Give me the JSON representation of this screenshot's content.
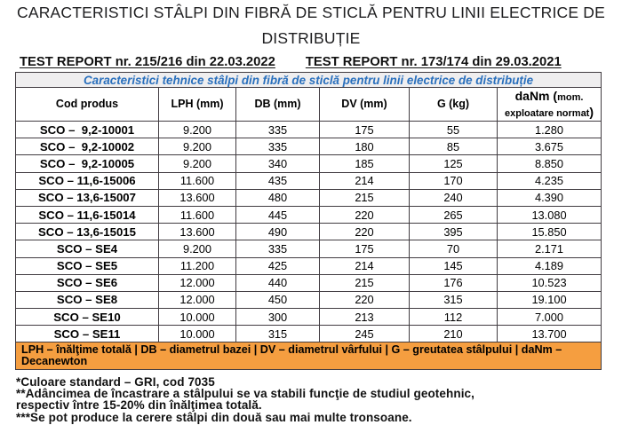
{
  "header": {
    "title_line1": "CARACTERISTICI STÂLPI DIN FIBRĂ DE STICLĂ PENTRU LINII ELECTRICE DE",
    "title_line2": "DISTRIBUȚIE",
    "test_report_left": "TEST REPORT nr. 215/216 din 22.03.2022",
    "test_report_right": "TEST REPORT nr. 173/174 din 29.03.2021"
  },
  "table": {
    "caption": "Caracteristici tehnice stâlpi din fibră de sticlă pentru linii electrice de distribuție",
    "columns": [
      "Cod produs",
      "LPH (mm)",
      "DB (mm)",
      "DV (mm)",
      "G (kg)"
    ],
    "last_column": {
      "big_open": "daNm (",
      "small_1": "mom.",
      "small_2": "exploatare normat",
      "big_close": ")"
    },
    "rows": [
      {
        "cod": "SCO –  9,2-10001",
        "lph": "9.200",
        "db": "335",
        "dv": "175",
        "g": "55",
        "danm": "1.280"
      },
      {
        "cod": "SCO –  9,2-10002",
        "lph": "9.200",
        "db": "335",
        "dv": "180",
        "g": "85",
        "danm": "3.675"
      },
      {
        "cod": "SCO –  9,2-10005",
        "lph": "9.200",
        "db": "340",
        "dv": "185",
        "g": "125",
        "danm": "8.850"
      },
      {
        "cod": "SCO – 11,6-15006",
        "lph": "11.600",
        "db": "435",
        "dv": "214",
        "g": "170",
        "danm": "4.235"
      },
      {
        "cod": "SCO – 13,6-15007",
        "lph": "13.600",
        "db": "480",
        "dv": "215",
        "g": "240",
        "danm": "4.390"
      },
      {
        "cod": "SCO – 11,6-15014",
        "lph": "11.600",
        "db": "445",
        "dv": "220",
        "g": "265",
        "danm": "13.080"
      },
      {
        "cod": "SCO – 13,6-15015",
        "lph": "13.600",
        "db": "490",
        "dv": "220",
        "g": "395",
        "danm": "15.850"
      },
      {
        "cod": "SCO – SE4",
        "lph": "9.200",
        "db": "335",
        "dv": "175",
        "g": "70",
        "danm": "2.171"
      },
      {
        "cod": "SCO – SE5",
        "lph": "11.200",
        "db": "425",
        "dv": "214",
        "g": "145",
        "danm": "4.189"
      },
      {
        "cod": "SCO – SE6",
        "lph": "12.000",
        "db": "440",
        "dv": "215",
        "g": "176",
        "danm": "10.523"
      },
      {
        "cod": "SCO – SE8",
        "lph": "12.000",
        "db": "450",
        "dv": "220",
        "g": "315",
        "danm": "19.100"
      },
      {
        "cod": "SCO – SE10",
        "lph": "10.000",
        "db": "300",
        "dv": "213",
        "g": "112",
        "danm": "7.000"
      },
      {
        "cod": "SCO – SE11",
        "lph": "10.000",
        "db": "315",
        "dv": "245",
        "g": "210",
        "danm": "13.700"
      }
    ],
    "legend_line1": "LPH – înălţime totală | DB – diametrul bazei | DV – diametrul vârfului | G – greutatea stâlpului | daNm –",
    "legend_line2": "Decanewton"
  },
  "notes": [
    "*Culoare standard – GRI, cod 7035",
    "**Adâncimea de încastrare a stâlpului se va stabili funcţie de studiul geotehnic,",
    "respectiv între 15-20% din înălţimea totală.",
    "***Se pot produce la cerere stâlpi din două sau mai multe tronsoane."
  ],
  "colors": {
    "legend_background": "#f59e40",
    "caption_text": "#2a70bd",
    "caption_background": "#efeeef",
    "table_border": "#413c41"
  }
}
